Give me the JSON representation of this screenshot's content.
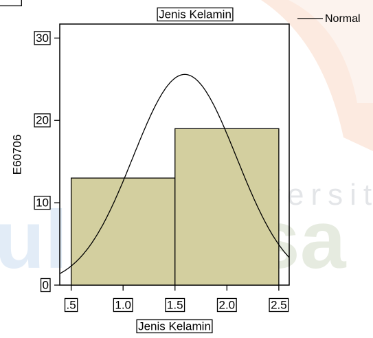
{
  "chart_data": {
    "type": "histogram",
    "title": "Jenis Kelamin",
    "x_label": "Jenis Kelamin",
    "y_label": "E60706",
    "bins": [
      0.5,
      1.5,
      2.5
    ],
    "values": [
      13,
      19
    ],
    "color": "#d3cf9f",
    "xlim": [
      0.39,
      2.6
    ],
    "ylim": [
      0,
      31.7
    ],
    "xticks": [
      {
        "value": 0.5,
        "label": ".5"
      },
      {
        "value": 1,
        "label": "1.0"
      },
      1.5,
      {
        "value": 2,
        "label": "2.0"
      },
      2.5
    ],
    "yticks": [
      0,
      10,
      20,
      30
    ],
    "legend": {
      "entries": [
        "Normal"
      ],
      "position": "top-right"
    },
    "normal_curve": true
  },
  "watermark": {
    "line1": "Universita",
    "line2": "Esa U",
    "left": "ul"
  }
}
